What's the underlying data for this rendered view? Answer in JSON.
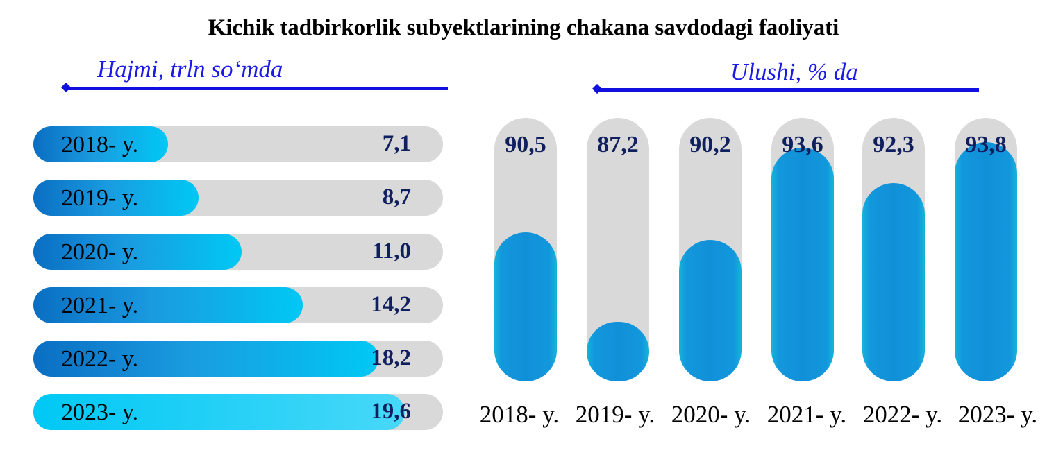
{
  "title": "Kichik tadbirkorlik subyektlarining chakana savdodagi faoliyati",
  "left_caption": "Hajmi, trln so‘mda",
  "right_caption": "Ulushi, % da",
  "colors": {
    "accent": "#1010e0",
    "value_text": "#10205e",
    "track": "#d9d9d9",
    "fill": "#1190d8"
  },
  "chart_data": [
    {
      "type": "bar",
      "orientation": "horizontal",
      "title": "Hajmi, trln so‘mda",
      "categories": [
        "2018- y.",
        "2019- y.",
        "2020- y.",
        "2021- y.",
        "2022- y.",
        "2023- y."
      ],
      "values": [
        7.1,
        8.7,
        11.0,
        14.2,
        18.2,
        19.6
      ],
      "value_labels": [
        "7,1",
        "8,7",
        "11,0",
        "14,2",
        "18,2",
        "19,6"
      ]
    },
    {
      "type": "bar",
      "orientation": "vertical",
      "title": "Ulushi, % da",
      "categories": [
        "2018- y.",
        "2019- y.",
        "2020- y.",
        "2021- y.",
        "2022- y.",
        "2023- y."
      ],
      "values": [
        90.5,
        87.2,
        90.2,
        93.6,
        92.3,
        93.8
      ],
      "value_labels": [
        "90,5",
        "87,2",
        "90,2",
        "93,6",
        "92,3",
        "93,8"
      ]
    }
  ]
}
